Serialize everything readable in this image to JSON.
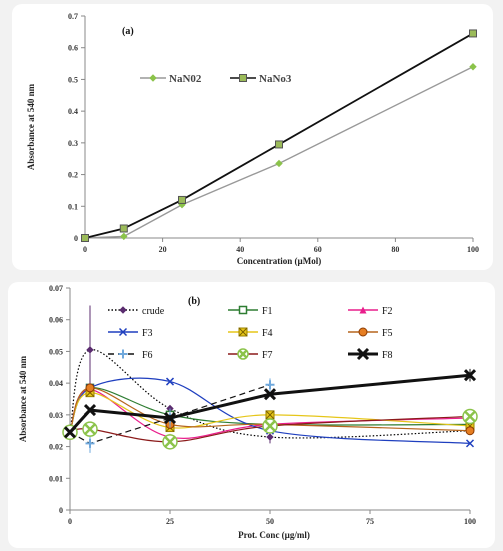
{
  "chart_data": [
    {
      "type": "line",
      "panel_label": "(a)",
      "xlabel": "Concentration (µMol)",
      "ylabel": "Absorbance at 540 nm",
      "xlim": [
        0,
        100
      ],
      "ylim": [
        0,
        0.7
      ],
      "xticks": [
        "0",
        "20",
        "40",
        "60",
        "80",
        "100"
      ],
      "yticks": [
        "0",
        "0.1",
        "0.2",
        "0.3",
        "0.4",
        "0.5",
        "0.6",
        "0.7"
      ],
      "legend_position": "middle-left",
      "series": [
        {
          "name": "NaN02",
          "color": "#999999",
          "marker": "diamond",
          "x": [
            0,
            10,
            25,
            50,
            100
          ],
          "y": [
            0,
            0.005,
            0.105,
            0.235,
            0.54
          ]
        },
        {
          "name": "NaNo3",
          "color": "#111111",
          "marker": "square",
          "x": [
            0,
            10,
            25,
            50,
            100
          ],
          "y": [
            0,
            0.03,
            0.12,
            0.295,
            0.645
          ]
        }
      ]
    },
    {
      "type": "line",
      "panel_label": "(b)",
      "xlabel": "Prot. Conc (µg/ml)",
      "ylabel": "Absorbance at 540 nm",
      "xlim": [
        0,
        100
      ],
      "ylim": [
        0,
        0.07
      ],
      "xticks": [
        "0",
        "25",
        "50",
        "75",
        "100"
      ],
      "yticks": [
        "0",
        "0.01",
        "0.02",
        "0.03",
        "0.04",
        "0.05",
        "0.06",
        "0.07"
      ],
      "legend_position": "top",
      "x": [
        0,
        5,
        25,
        50,
        100
      ],
      "series": [
        {
          "name": "crude",
          "color": "#000000",
          "dash": "dotted",
          "marker": "diamond",
          "marker_color": "#5b2c6f",
          "y": [
            0.0245,
            0.0505,
            0.032,
            0.023,
            0.025
          ],
          "err": [
            0,
            0.014,
            0,
            0.002,
            0
          ]
        },
        {
          "name": "F1",
          "color": "#2e7d32",
          "marker": "square-open",
          "y": [
            0.0245,
            0.0385,
            0.03,
            0.027,
            0.027
          ],
          "err": [
            0,
            0,
            0,
            0,
            0
          ]
        },
        {
          "name": "F2",
          "color": "#e91e8c",
          "marker": "triangle",
          "y": [
            0.0245,
            0.038,
            0.023,
            0.027,
            0.029
          ],
          "err": [
            0,
            0,
            0,
            0,
            0
          ]
        },
        {
          "name": "F3",
          "color": "#1f3fbf",
          "marker": "x",
          "y": [
            0.0245,
            0.0385,
            0.0405,
            0.025,
            0.021
          ],
          "err": [
            0,
            0,
            0,
            0,
            0
          ]
        },
        {
          "name": "F4",
          "color": "#e6c619",
          "marker": "square-x",
          "y": [
            0.0245,
            0.037,
            0.026,
            0.03,
            0.0265
          ],
          "err": [
            0,
            0,
            0,
            0,
            0
          ]
        },
        {
          "name": "F5",
          "color": "#b5651d",
          "marker": "circle",
          "y": [
            0.0245,
            0.0385,
            0.027,
            0.027,
            0.025
          ],
          "err": [
            0,
            0,
            0,
            0,
            0
          ]
        },
        {
          "name": "F6",
          "color": "#111111",
          "dash": "dashed",
          "marker": "plus",
          "marker_color": "#6fa8dc",
          "y": [
            0.0245,
            0.021,
            0.029,
            0.0395,
            0.0
          ],
          "err": [
            0,
            0.003,
            0.003,
            0.002,
            0
          ],
          "points": 4
        },
        {
          "name": "F7",
          "color": "#8b1a1a",
          "marker": "circle-x-open",
          "marker_color": "#8bc34a",
          "y": [
            0.0245,
            0.0255,
            0.0215,
            0.0265,
            0.0295
          ],
          "err": [
            0,
            0,
            0,
            0,
            0
          ]
        },
        {
          "name": "F8",
          "color": "#111111",
          "width": 3,
          "marker": "x-bold",
          "y": [
            0.0245,
            0.0315,
            0.029,
            0.0365,
            0.0425
          ],
          "err": [
            0,
            0,
            0.001,
            0,
            0.002
          ]
        }
      ]
    }
  ]
}
